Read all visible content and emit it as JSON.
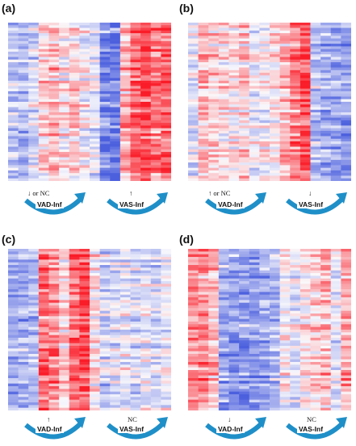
{
  "panels": [
    {
      "label": "(a)",
      "left": {
        "symbol": "↓ or NC",
        "name": "VAD-Inf"
      },
      "right": {
        "symbol": "↑",
        "name": "VAS-Inf"
      }
    },
    {
      "label": "(b)",
      "left": {
        "symbol": "↑ or NC",
        "name": "VAD-Inf"
      },
      "right": {
        "symbol": "↓",
        "name": "VAS-Inf"
      }
    },
    {
      "label": "(c)",
      "left": {
        "symbol": "↑",
        "name": "VAD-Inf"
      },
      "right": {
        "symbol": "NC",
        "name": "VAS-Inf"
      }
    },
    {
      "label": "(d)",
      "left": {
        "symbol": "↓",
        "name": "VAD-Inf"
      },
      "right": {
        "symbol": "NC",
        "name": "VAS-Inf"
      }
    }
  ],
  "colors": {
    "up": "#e8192a",
    "down": "#4c5bd8",
    "neutral": "#f4f4fa",
    "arrow": "#1f8fc8"
  }
}
